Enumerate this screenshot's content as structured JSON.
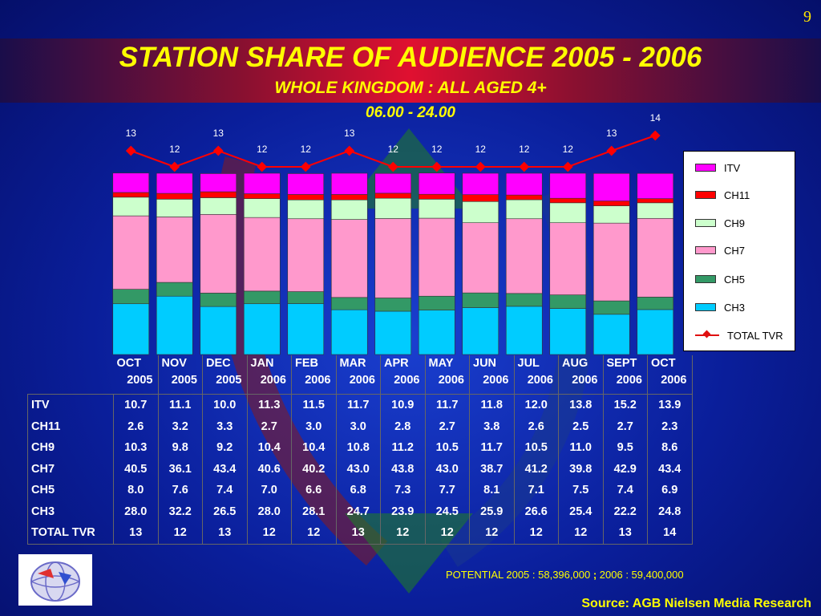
{
  "page_number": "9",
  "title": "STATION SHARE OF AUDIENCE 2005 - 2006",
  "subtitle": "WHOLE KINGDOM : ALL AGED 4+",
  "time_range": "06.00 - 24.00",
  "potential": {
    "part1": "POTENTIAL 2005 : 58,396,000",
    "sep": ";",
    "part2": "2006 : 59,400,000"
  },
  "source": "Source: AGB Nielsen Media Research",
  "colors": {
    "ITV": "#ff00ff",
    "CH11": "#ff0000",
    "CH9": "#ccffcc",
    "CH7": "#ff99cc",
    "CH5": "#339966",
    "CH3": "#00ccff",
    "TOTAL TVR": "#ff0000"
  },
  "chart_data": {
    "type": "bar",
    "stacked": true,
    "months": [
      "OCT",
      "NOV",
      "DEC",
      "JAN",
      "FEB",
      "MAR",
      "APR",
      "MAY",
      "JUN",
      "JUL",
      "AUG",
      "SEPT",
      "OCT"
    ],
    "years": [
      "2005",
      "2005",
      "2005",
      "2006",
      "2006",
      "2006",
      "2006",
      "2006",
      "2006",
      "2006",
      "2006",
      "2006",
      "2006"
    ],
    "series": [
      {
        "name": "CH3",
        "values": [
          28.0,
          32.2,
          26.5,
          28.0,
          28.1,
          24.7,
          23.9,
          24.5,
          25.9,
          26.6,
          25.4,
          22.2,
          24.8
        ]
      },
      {
        "name": "CH5",
        "values": [
          8.0,
          7.6,
          7.4,
          7.0,
          6.6,
          6.8,
          7.3,
          7.7,
          8.1,
          7.1,
          7.5,
          7.4,
          6.9
        ]
      },
      {
        "name": "CH7",
        "values": [
          40.5,
          36.1,
          43.4,
          40.6,
          40.2,
          43.0,
          43.8,
          43.0,
          38.7,
          41.2,
          39.8,
          42.9,
          43.4
        ]
      },
      {
        "name": "CH9",
        "values": [
          10.3,
          9.8,
          9.2,
          10.4,
          10.4,
          10.8,
          11.2,
          10.5,
          11.7,
          10.5,
          11.0,
          9.5,
          8.6
        ]
      },
      {
        "name": "CH11",
        "values": [
          2.6,
          3.2,
          3.3,
          2.7,
          3.0,
          3.0,
          2.8,
          2.7,
          3.8,
          2.6,
          2.5,
          2.7,
          2.3
        ]
      },
      {
        "name": "ITV",
        "values": [
          10.7,
          11.1,
          10.0,
          11.3,
          11.5,
          11.7,
          10.9,
          11.7,
          11.8,
          12.0,
          13.8,
          15.2,
          13.9
        ]
      }
    ],
    "line": {
      "name": "TOTAL TVR",
      "values": [
        13,
        12,
        13,
        12,
        12,
        13,
        12,
        12,
        12,
        12,
        12,
        13,
        14
      ]
    },
    "legend": [
      "ITV",
      "CH11",
      "CH9",
      "CH7",
      "CH5",
      "CH3",
      "TOTAL TVR"
    ],
    "legend_position": "right",
    "ylim": [
      0,
      100
    ],
    "table_rows": [
      {
        "label": "ITV",
        "values": [
          "10.7",
          "11.1",
          "10.0",
          "11.3",
          "11.5",
          "11.7",
          "10.9",
          "11.7",
          "11.8",
          "12.0",
          "13.8",
          "15.2",
          "13.9"
        ]
      },
      {
        "label": "CH11",
        "values": [
          "2.6",
          "3.2",
          "3.3",
          "2.7",
          "3.0",
          "3.0",
          "2.8",
          "2.7",
          "3.8",
          "2.6",
          "2.5",
          "2.7",
          "2.3"
        ]
      },
      {
        "label": "CH9",
        "values": [
          "10.3",
          "9.8",
          "9.2",
          "10.4",
          "10.4",
          "10.8",
          "11.2",
          "10.5",
          "11.7",
          "10.5",
          "11.0",
          "9.5",
          "8.6"
        ]
      },
      {
        "label": "CH7",
        "values": [
          "40.5",
          "36.1",
          "43.4",
          "40.6",
          "40.2",
          "43.0",
          "43.8",
          "43.0",
          "38.7",
          "41.2",
          "39.8",
          "42.9",
          "43.4"
        ]
      },
      {
        "label": "CH5",
        "values": [
          "8.0",
          "7.6",
          "7.4",
          "7.0",
          "6.6",
          "6.8",
          "7.3",
          "7.7",
          "8.1",
          "7.1",
          "7.5",
          "7.4",
          "6.9"
        ]
      },
      {
        "label": "CH3",
        "values": [
          "28.0",
          "32.2",
          "26.5",
          "28.0",
          "28.1",
          "24.7",
          "23.9",
          "24.5",
          "25.9",
          "26.6",
          "25.4",
          "22.2",
          "24.8"
        ]
      },
      {
        "label": "TOTAL TVR",
        "values": [
          "13",
          "12",
          "13",
          "12",
          "12",
          "13",
          "12",
          "12",
          "12",
          "12",
          "12",
          "13",
          "14"
        ]
      }
    ]
  }
}
